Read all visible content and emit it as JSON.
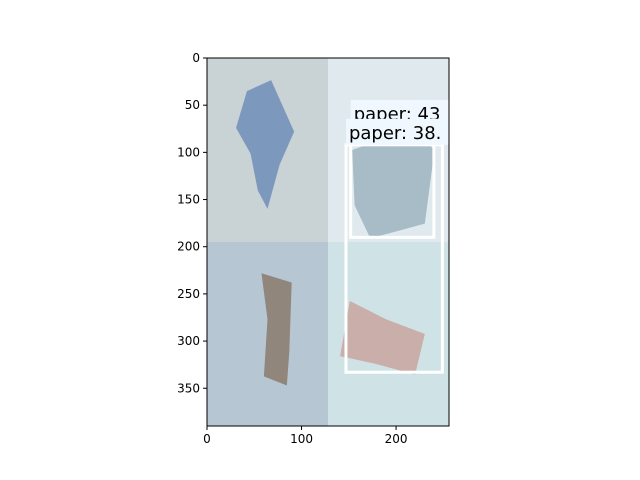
{
  "axes": {
    "x_ticks": [
      {
        "value": 0,
        "label": "0"
      },
      {
        "value": 100,
        "label": "100"
      },
      {
        "value": 200,
        "label": "200"
      }
    ],
    "y_ticks": [
      {
        "value": 0,
        "label": "0"
      },
      {
        "value": 50,
        "label": "50"
      },
      {
        "value": 100,
        "label": "100"
      },
      {
        "value": 150,
        "label": "150"
      },
      {
        "value": 200,
        "label": "200"
      },
      {
        "value": 250,
        "label": "250"
      },
      {
        "value": 300,
        "label": "300"
      },
      {
        "value": 350,
        "label": "350"
      }
    ],
    "xlim": [
      0,
      256
    ],
    "ylim": [
      390,
      0
    ]
  },
  "image": {
    "tiles": [
      {
        "name": "tile-blue-wrapper",
        "x0": 0,
        "y0": 0,
        "x1": 128,
        "y1": 195,
        "bg": "#c9d2d4",
        "object_color": "#6f8fb8"
      },
      {
        "name": "tile-glass-bottle",
        "x0": 128,
        "y0": 0,
        "x1": 256,
        "y1": 195,
        "bg": "#dfe9ee",
        "object_color": "#9db4bf"
      },
      {
        "name": "tile-foil-wrapper",
        "x0": 0,
        "y0": 195,
        "x1": 128,
        "y1": 390,
        "bg": "#b6c7d3",
        "object_color": "#8b7a6c"
      },
      {
        "name": "tile-crumpled-paper",
        "x0": 128,
        "y0": 195,
        "x1": 256,
        "y1": 390,
        "bg": "#cfe3e6",
        "object_color": "#c9a59d"
      }
    ]
  },
  "detections": [
    {
      "label": "paper: 43",
      "x0": 152,
      "y0": 72,
      "x1": 240,
      "y1": 190,
      "box_color": "#ffffff",
      "label_bg": "#f0f8ff"
    },
    {
      "label": "paper: 38.",
      "x0": 147,
      "y0": 92,
      "x1": 249,
      "y1": 333,
      "box_color": "#ffffff",
      "label_bg": "#f0f8ff"
    }
  ]
}
